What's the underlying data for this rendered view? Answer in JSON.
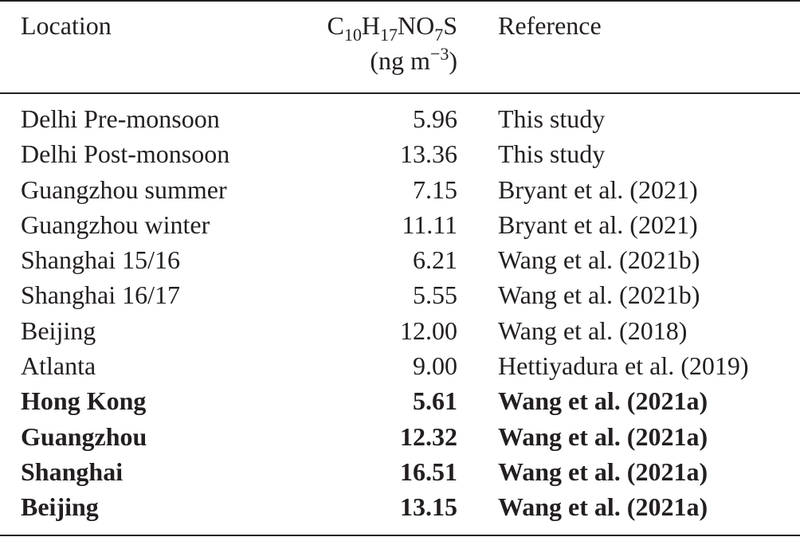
{
  "header": {
    "location": "Location",
    "compound": {
      "c_sym": "C",
      "c_sub": "10",
      "h_sym": "H",
      "h_sub": "17",
      "no_sym": "NO",
      "o_sub": "7",
      "s_sym": "S"
    },
    "unit": {
      "open": "(ng m",
      "exp": "−3",
      "close": ")"
    },
    "reference": "Reference"
  },
  "rows": [
    {
      "location": "Delhi Pre-monsoon",
      "value": "5.96",
      "reference": "This study",
      "bold": false
    },
    {
      "location": "Delhi Post-monsoon",
      "value": "13.36",
      "reference": "This study",
      "bold": false
    },
    {
      "location": "Guangzhou summer",
      "value": "7.15",
      "reference": "Bryant et al. (2021)",
      "bold": false
    },
    {
      "location": "Guangzhou winter",
      "value": "11.11",
      "reference": "Bryant et al. (2021)",
      "bold": false
    },
    {
      "location": "Shanghai 15/16",
      "value": "6.21",
      "reference": "Wang et al. (2021b)",
      "bold": false
    },
    {
      "location": "Shanghai 16/17",
      "value": "5.55",
      "reference": "Wang et al. (2021b)",
      "bold": false
    },
    {
      "location": "Beijing",
      "value": "12.00",
      "reference": "Wang et al. (2018)",
      "bold": false
    },
    {
      "location": "Atlanta",
      "value": "9.00",
      "reference": "Hettiyadura et al. (2019)",
      "bold": false
    },
    {
      "location": "Hong Kong",
      "value": "5.61",
      "reference": "Wang et al. (2021a)",
      "bold": true
    },
    {
      "location": "Guangzhou",
      "value": "12.32",
      "reference": "Wang et al. (2021a)",
      "bold": true
    },
    {
      "location": "Shanghai",
      "value": "16.51",
      "reference": "Wang et al. (2021a)",
      "bold": true
    },
    {
      "location": "Beijing",
      "value": "13.15",
      "reference": "Wang et al. (2021a)",
      "bold": true
    }
  ]
}
